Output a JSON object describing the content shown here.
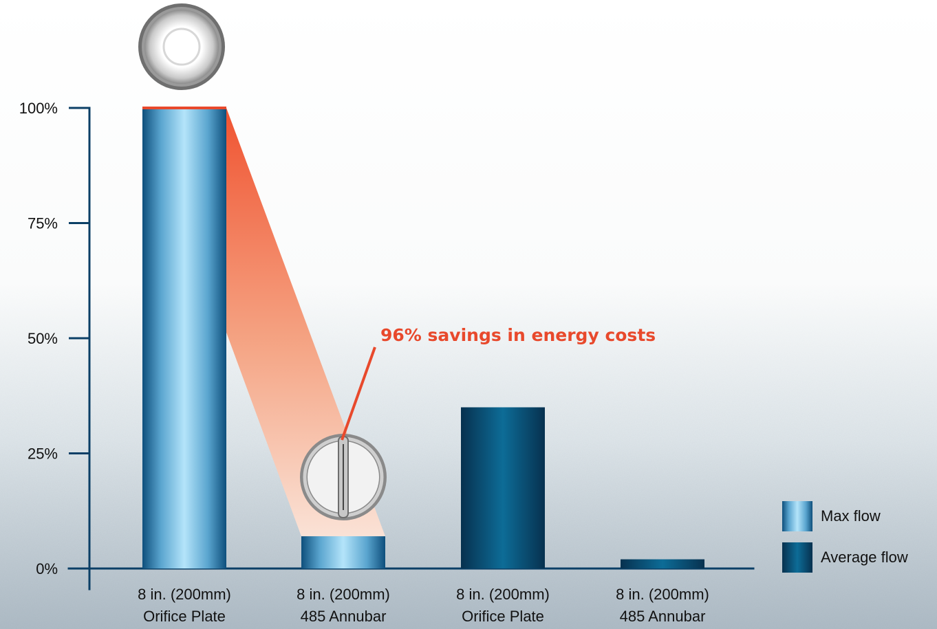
{
  "colors": {
    "axis": "#0b3f66",
    "max_flow_light": "#b4e4fa",
    "max_flow_dark": "#0e4f7c",
    "avg_flow_light": "#0d6c97",
    "avg_flow_dark": "#07314f",
    "accent": "#e8492c"
  },
  "chart_data": {
    "type": "bar",
    "ylim": [
      0,
      100
    ],
    "yticks": [
      0,
      25,
      50,
      75,
      100
    ],
    "ytick_labels": [
      "0%",
      "25%",
      "50%",
      "75%",
      "100%"
    ],
    "grid": false,
    "legend_position": "bottom-right",
    "categories": [
      "8 in. (200mm)\nOrifice Plate",
      "8 in. (200mm)\n485 Annubar",
      "8 in. (200mm)\nOrifice Plate",
      "8 in. (200mm)\n485 Annubar"
    ],
    "category_lines": [
      [
        "8 in. (200mm)",
        "Orifice Plate"
      ],
      [
        "8 in. (200mm)",
        "485 Annubar"
      ],
      [
        "8 in. (200mm)",
        "Orifice Plate"
      ],
      [
        "8 in. (200mm)",
        "485 Annubar"
      ]
    ],
    "bars": [
      {
        "category_index": 0,
        "series": "Max flow",
        "value": 100
      },
      {
        "category_index": 1,
        "series": "Max flow",
        "value": 7
      },
      {
        "category_index": 2,
        "series": "Average flow",
        "value": 35
      },
      {
        "category_index": 3,
        "series": "Average flow",
        "value": 2
      }
    ],
    "series": [
      {
        "name": "Max flow",
        "values": [
          100,
          7,
          null,
          null
        ]
      },
      {
        "name": "Average flow",
        "values": [
          null,
          null,
          35,
          2
        ]
      }
    ],
    "legend": [
      "Max flow",
      "Average flow"
    ],
    "annotation": {
      "text": "96% savings in energy costs",
      "from_category": 0,
      "to_category": 1
    },
    "icons": [
      {
        "name": "orifice-plate-icon",
        "category_index": 0
      },
      {
        "name": "annubar-sensor-icon",
        "category_index": 1
      }
    ]
  }
}
